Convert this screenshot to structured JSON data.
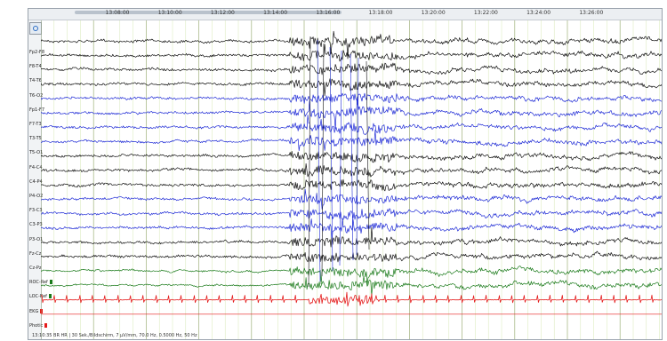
{
  "time_axis": {
    "ticks": [
      "13:08:00",
      "13:10:00",
      "13:12:00",
      "13:14:00",
      "13:16:00",
      "13:18:00",
      "13:20:00",
      "13:22:00",
      "13:24:00",
      "13:26:00"
    ]
  },
  "channels": [
    {
      "label": "Fp2-F8",
      "color": "#111111",
      "marker": null
    },
    {
      "label": "F8-T4",
      "color": "#111111",
      "marker": null
    },
    {
      "label": "T4-T6",
      "color": "#111111",
      "marker": null
    },
    {
      "label": "T6-O2",
      "color": "#111111",
      "marker": null
    },
    {
      "label": "Fp1-F7",
      "color": "#1f2bd6",
      "marker": null
    },
    {
      "label": "F7-T3",
      "color": "#1f2bd6",
      "marker": null
    },
    {
      "label": "T3-T5",
      "color": "#1f2bd6",
      "marker": null
    },
    {
      "label": "T5-O1",
      "color": "#1f2bd6",
      "marker": null
    },
    {
      "label": "F4-C4",
      "color": "#111111",
      "marker": null
    },
    {
      "label": "C4-P4",
      "color": "#111111",
      "marker": null
    },
    {
      "label": "P4-O2",
      "color": "#111111",
      "marker": null
    },
    {
      "label": "F3-C3",
      "color": "#1f2bd6",
      "marker": null
    },
    {
      "label": "C3-P3",
      "color": "#1f2bd6",
      "marker": null
    },
    {
      "label": "P3-O1",
      "color": "#1f2bd6",
      "marker": null
    },
    {
      "label": "Fz-Cz",
      "color": "#111111",
      "marker": null
    },
    {
      "label": "Cz-Pz",
      "color": "#111111",
      "marker": null
    },
    {
      "label": "ROC-Ref",
      "color": "#1a7a1a",
      "marker": "#1a7a1a"
    },
    {
      "label": "LOC-Ref",
      "color": "#1a7a1a",
      "marker": "#1a7a1a"
    },
    {
      "label": "EKG",
      "color": "#e41b1b",
      "marker": "#e41b1b"
    },
    {
      "label": "Photic",
      "color": "#e41b1b",
      "marker": "#e41b1b"
    }
  ],
  "status_text": "13:10:35 BR HR | 30 Sek./Bildschirm, 7 µV/mm, 70.0 Hz, 0.5000 Hz, 50 Hz",
  "colors": {
    "grid_minor": "#d7e8b6",
    "grid_major": "#9fb27a",
    "eeg_black": "#111111",
    "eeg_blue": "#1f2bd6",
    "eog_green": "#1a7a1a",
    "ekg_red": "#e41b1b"
  }
}
